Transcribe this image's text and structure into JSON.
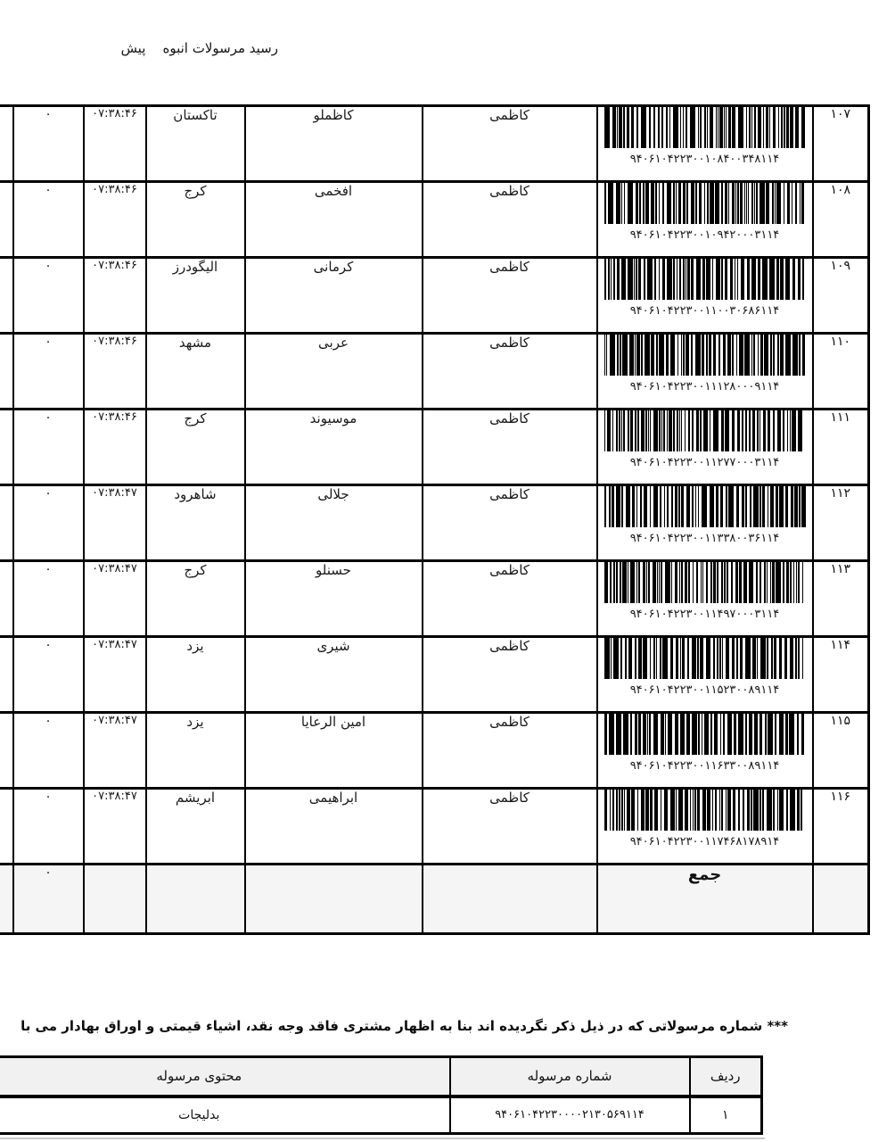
{
  "page": {
    "title": "رسید مرسولات انبوه    پیش",
    "note": "*** شماره مرسولاتی که در ذیل ذکر نگردیده اند بنا به اظهار مشتری فاقد وجه نقد، اشیاء قیمتی و اوراق بهادار می با"
  },
  "main_table": {
    "sum_label": "جمع",
    "sum_zero": "۰",
    "rows": [
      {
        "row_no": "۱۰۷",
        "tracking": "۹۴۰۶۱۰۴۲۲۳۰۰۱۰۸۴۰۰۳۴۸۱۱۴",
        "sender": "کاظمی",
        "receiver": "کاظملو",
        "city": "تاکستان",
        "time": "۰۷:۳۸:۴۶",
        "zero": "۰"
      },
      {
        "row_no": "۱۰۸",
        "tracking": "۹۴۰۶۱۰۴۲۲۳۰۰۱۰۹۴۲۰۰۰۳۱۱۴",
        "sender": "کاظمی",
        "receiver": "افخمی",
        "city": "کرج",
        "time": "۰۷:۳۸:۴۶",
        "zero": "۰"
      },
      {
        "row_no": "۱۰۹",
        "tracking": "۹۴۰۶۱۰۴۲۲۳۰۰۱۱۰۰۳۰۶۸۶۱۱۴",
        "sender": "کاظمی",
        "receiver": "کرمانی",
        "city": "الیگودرز",
        "time": "۰۷:۳۸:۴۶",
        "zero": "۰"
      },
      {
        "row_no": "۱۱۰",
        "tracking": "۹۴۰۶۱۰۴۲۲۳۰۰۱۱۱۲۸۰۰۰۹۱۱۴",
        "sender": "کاظمی",
        "receiver": "عربی",
        "city": "مشهد",
        "time": "۰۷:۳۸:۴۶",
        "zero": "۰"
      },
      {
        "row_no": "۱۱۱",
        "tracking": "۹۴۰۶۱۰۴۲۲۳۰۰۱۱۲۷۷۰۰۰۳۱۱۴",
        "sender": "کاظمی",
        "receiver": "موسیوند",
        "city": "کرج",
        "time": "۰۷:۳۸:۴۶",
        "zero": "۰"
      },
      {
        "row_no": "۱۱۲",
        "tracking": "۹۴۰۶۱۰۴۲۲۳۰۰۱۱۳۳۸۰۰۳۶۱۱۴",
        "sender": "کاظمی",
        "receiver": "جلالی",
        "city": "شاهرود",
        "time": "۰۷:۳۸:۴۷",
        "zero": "۰"
      },
      {
        "row_no": "۱۱۳",
        "tracking": "۹۴۰۶۱۰۴۲۲۳۰۰۱۱۴۹۷۰۰۰۳۱۱۴",
        "sender": "کاظمی",
        "receiver": "حسنلو",
        "city": "کرج",
        "time": "۰۷:۳۸:۴۷",
        "zero": "۰"
      },
      {
        "row_no": "۱۱۴",
        "tracking": "۹۴۰۶۱۰۴۲۲۳۰۰۱۱۵۲۳۰۰۸۹۱۱۴",
        "sender": "کاظمی",
        "receiver": "شیری",
        "city": "یزد",
        "time": "۰۷:۳۸:۴۷",
        "zero": "۰"
      },
      {
        "row_no": "۱۱۵",
        "tracking": "۹۴۰۶۱۰۴۲۲۳۰۰۱۱۶۳۳۰۰۸۹۱۱۴",
        "sender": "کاظمی",
        "receiver": "امین الرعایا",
        "city": "یزد",
        "time": "۰۷:۳۸:۴۷",
        "zero": "۰"
      },
      {
        "row_no": "۱۱۶",
        "tracking": "۹۴۰۶۱۰۴۲۲۳۰۰۱۱۷۴۶۸۱۷۸۹۱۴",
        "sender": "کاظمی",
        "receiver": "ابراهیمی",
        "city": "ابریشم",
        "time": "۰۷:۳۸:۴۷",
        "zero": "۰"
      }
    ]
  },
  "bottom_table": {
    "headers": {
      "row": "ردیف",
      "number": "شماره مرسوله",
      "content": "محتوی مرسوله"
    },
    "rows": [
      {
        "row": "۱",
        "number": "۹۴۰۶۱۰۴۲۲۳۰۰۰۰۲۱۳۰۵۶۹۱۱۴",
        "content": "بدلیجات"
      }
    ]
  }
}
